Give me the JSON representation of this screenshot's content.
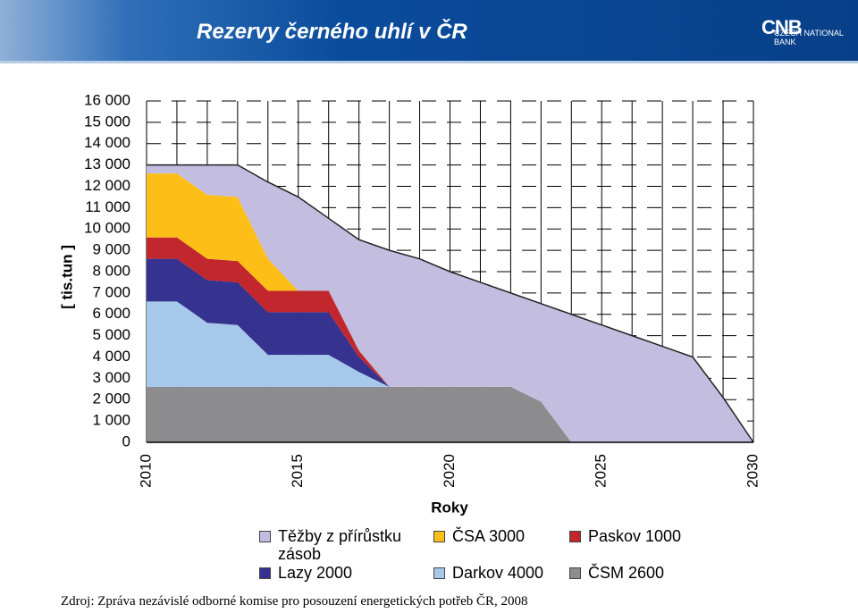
{
  "header": {
    "title": "Rezervy černého uhlí v ČR",
    "logo": "CNB",
    "logo_sub": "CZECH NATIONAL BANK"
  },
  "chart_data": {
    "type": "area",
    "stacked": true,
    "x_label": "Roky",
    "y_label": "[ tis.tun ]",
    "x": [
      2010,
      2011,
      2012,
      2013,
      2014,
      2015,
      2016,
      2017,
      2018,
      2019,
      2020,
      2021,
      2022,
      2023,
      2024,
      2025,
      2026,
      2027,
      2028,
      2029,
      2030
    ],
    "xlim": [
      2010,
      2030
    ],
    "xticks": [
      2010,
      2015,
      2020,
      2025,
      2030
    ],
    "ylim": [
      0,
      16000
    ],
    "yticks": [
      0,
      {
        "value": 1000,
        "label": "1 000"
      },
      {
        "value": 2000,
        "label": "2 000"
      },
      {
        "value": 3000,
        "label": "3 000"
      },
      {
        "value": 4000,
        "label": "4 000"
      },
      {
        "value": 5000,
        "label": "5 000"
      },
      {
        "value": 6000,
        "label": "6 000"
      },
      {
        "value": 7000,
        "label": "7 000"
      },
      {
        "value": 8000,
        "label": "8 000"
      },
      {
        "value": 9000,
        "label": "9 000"
      },
      {
        "value": 10000,
        "label": "10 000"
      },
      {
        "value": 11000,
        "label": "11 000"
      },
      {
        "value": 12000,
        "label": "12 000"
      },
      {
        "value": 13000,
        "label": "13 000"
      },
      {
        "value": 14000,
        "label": "14 000"
      },
      {
        "value": 15000,
        "label": "15 000"
      },
      {
        "value": 16000,
        "label": "16 000"
      }
    ],
    "grid": true,
    "series": [
      {
        "name": "ČSM 2600",
        "color": "#8c8c8e",
        "values": [
          2600,
          2600,
          2600,
          2600,
          2600,
          2600,
          2600,
          2600,
          2600,
          2600,
          2600,
          2600,
          2600,
          1900,
          0,
          0,
          0,
          0,
          0,
          0,
          0
        ]
      },
      {
        "name": "Darkov 4000",
        "color": "#a6c8ea",
        "values": [
          4000,
          4000,
          3000,
          2900,
          1500,
          1500,
          1500,
          700,
          0,
          0,
          0,
          0,
          0,
          0,
          0,
          0,
          0,
          0,
          0,
          0,
          0
        ]
      },
      {
        "name": "Lazy 2000",
        "color": "#35338f",
        "values": [
          2000,
          2000,
          2000,
          2000,
          2000,
          2000,
          2000,
          700,
          0,
          0,
          0,
          0,
          0,
          0,
          0,
          0,
          0,
          0,
          0,
          0,
          0
        ]
      },
      {
        "name": "Paskov 1000",
        "color": "#c1272d",
        "values": [
          1000,
          1000,
          1000,
          1000,
          1000,
          1000,
          1000,
          300,
          0,
          0,
          0,
          0,
          0,
          0,
          0,
          0,
          0,
          0,
          0,
          0,
          0
        ]
      },
      {
        "name": "ČSA 3000",
        "color": "#fdbf17",
        "values": [
          3000,
          3000,
          3000,
          3000,
          1500,
          0,
          0,
          0,
          0,
          0,
          0,
          0,
          0,
          0,
          0,
          0,
          0,
          0,
          0,
          0,
          0
        ]
      },
      {
        "name": "Těžby z přírůstku zásob",
        "color": "#c3bde0",
        "values": [
          400,
          400,
          1400,
          1500,
          3600,
          4400,
          3400,
          5200,
          6400,
          6000,
          5400,
          4900,
          4400,
          4600,
          6000,
          5500,
          5000,
          4500,
          4000,
          2100,
          0
        ]
      }
    ],
    "legend_order": [
      5,
      4,
      3,
      2,
      1,
      0
    ]
  },
  "source": "Zdroj: Zpráva nezávislé odborné komise pro posouzení energetických potřeb ČR, 2008"
}
